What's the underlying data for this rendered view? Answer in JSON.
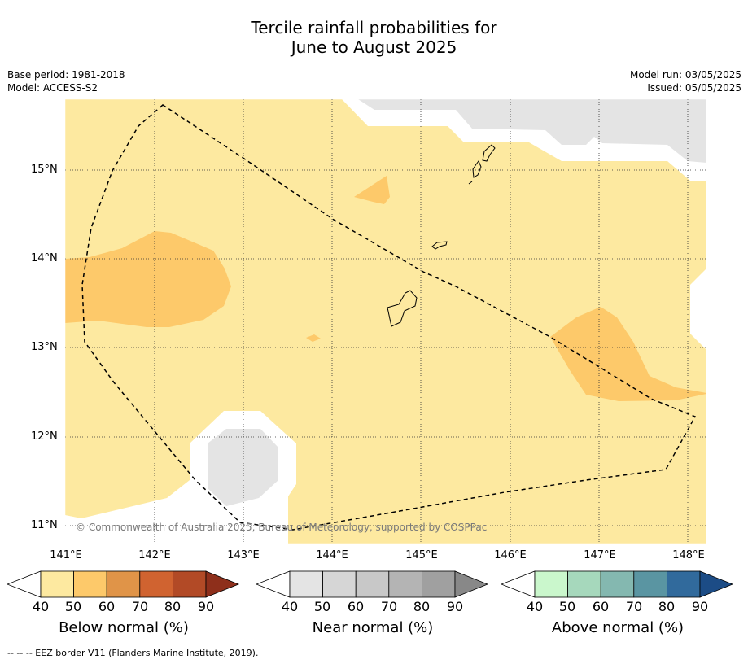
{
  "title": {
    "line1": "Tercile rainfall probabilities for",
    "line2": "June to August 2025"
  },
  "meta": {
    "base_period": "Base period: 1981-2018",
    "model": "Model: ACCESS-S2",
    "model_run": "Model run: 03/05/2025",
    "issued": "Issued: 05/05/2025"
  },
  "map": {
    "lat_labels": [
      "15°N",
      "14°N",
      "13°N",
      "12°N",
      "11°N"
    ],
    "lon_labels": [
      "141°E",
      "142°E",
      "143°E",
      "144°E",
      "145°E",
      "146°E",
      "147°E",
      "148°E"
    ],
    "copyright": "© Commonwealth of Australia 2025, Bureau of Meteorology, supported by COSPPac",
    "colors": {
      "below_40_50": "#fde9a0",
      "below_50_60": "#fdc96a",
      "near_40_50": "#e4e4e4",
      "white": "#ffffff"
    }
  },
  "colorbars": [
    {
      "title": "Below normal (%)",
      "ticks": [
        "40",
        "50",
        "60",
        "70",
        "80",
        "90"
      ],
      "colors": [
        "#fde9a0",
        "#fdc96a",
        "#e09448",
        "#d06330",
        "#b24a26",
        "#8e2f1b"
      ]
    },
    {
      "title": "Near normal (%)",
      "ticks": [
        "40",
        "50",
        "60",
        "70",
        "80",
        "90"
      ],
      "colors": [
        "#e4e4e4",
        "#d6d6d6",
        "#c8c8c8",
        "#b4b4b4",
        "#a0a0a0",
        "#888888"
      ]
    },
    {
      "title": "Above normal (%)",
      "ticks": [
        "40",
        "50",
        "60",
        "70",
        "80",
        "90"
      ],
      "colors": [
        "#caf7cc",
        "#a6d8bc",
        "#84b8b0",
        "#5a95a2",
        "#316a9c",
        "#1c4c86"
      ]
    }
  ],
  "footer": "--  --  -- EEZ border V11 (Flanders Marine Institute, 2019)."
}
